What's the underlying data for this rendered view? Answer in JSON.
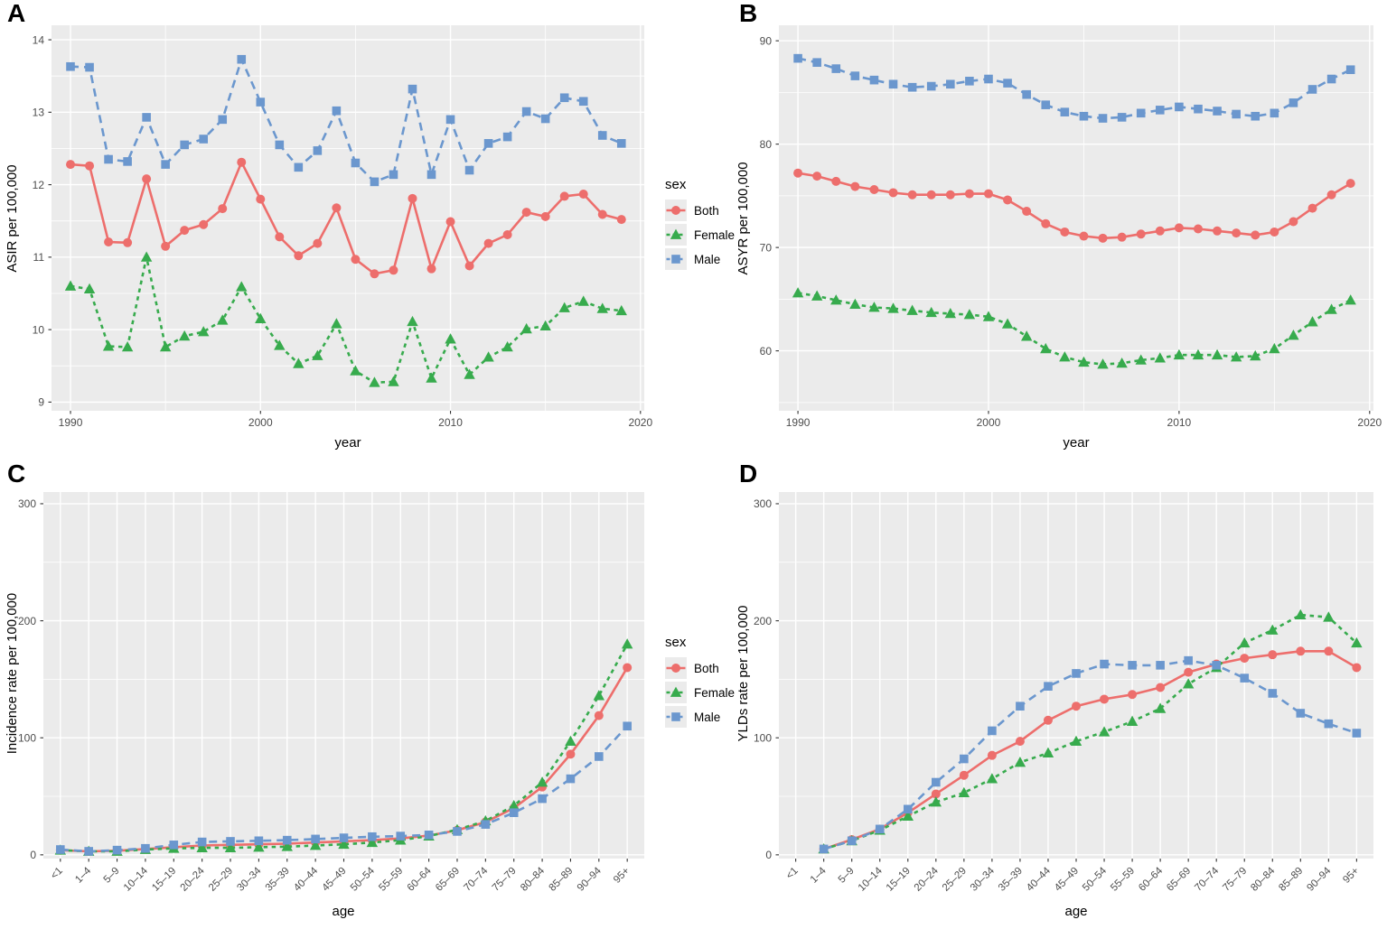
{
  "figure": {
    "panel_bg": "#EBEBEB",
    "grid_color": "#FFFFFF",
    "tick_color": "#333333",
    "tick_label_color": "#4d4d4d",
    "series_styles": {
      "Both": {
        "color": "#ED6E6C",
        "dash": "",
        "marker": "circle"
      },
      "Female": {
        "color": "#37AB4D",
        "dash": "4.5 4.5",
        "marker": "triangle"
      },
      "Male": {
        "color": "#6B97CE",
        "dash": "9 6",
        "marker": "square"
      }
    }
  },
  "legend": {
    "title": "sex",
    "items": [
      {
        "label": "Both",
        "series": "Both"
      },
      {
        "label": "Female",
        "series": "Female"
      },
      {
        "label": "Male",
        "series": "Male"
      }
    ]
  },
  "chart_data": [
    {
      "panel_label": "A",
      "type": "line",
      "title": "",
      "xlabel": "year",
      "ylabel": "ASIR per 100,000",
      "legend_position": "right-of-panel",
      "grid": true,
      "x": {
        "type": "linear",
        "x0": 1990,
        "domain": [
          1989.0,
          2020.2
        ],
        "major": [
          1990,
          2000,
          2010,
          2020
        ],
        "minor": [
          1995,
          2005,
          2015
        ]
      },
      "y": {
        "domain": [
          8.88,
          14.2
        ],
        "major": [
          9,
          10,
          11,
          12,
          13,
          14
        ],
        "minor": [
          9.5,
          10.5,
          11.5,
          12.5,
          13.5
        ]
      },
      "series": [
        {
          "name": "Both",
          "values": [
            12.28,
            12.26,
            11.21,
            11.2,
            12.08,
            11.15,
            11.37,
            11.45,
            11.67,
            12.31,
            11.8,
            11.28,
            11.02,
            11.19,
            11.68,
            10.97,
            10.77,
            10.82,
            11.81,
            10.84,
            11.49,
            10.88,
            11.19,
            11.31,
            11.62,
            11.56,
            11.84,
            11.87,
            11.59,
            11.52
          ]
        },
        {
          "name": "Female",
          "values": [
            10.6,
            10.56,
            9.77,
            9.76,
            11.0,
            9.76,
            9.91,
            9.97,
            10.13,
            10.59,
            10.15,
            9.78,
            9.53,
            9.64,
            10.08,
            9.43,
            9.27,
            9.28,
            10.11,
            9.33,
            9.87,
            9.38,
            9.62,
            9.76,
            10.01,
            10.05,
            10.3,
            10.39,
            10.29,
            10.26
          ]
        },
        {
          "name": "Male",
          "values": [
            13.63,
            13.62,
            12.35,
            12.32,
            12.93,
            12.28,
            12.55,
            12.63,
            12.9,
            13.73,
            13.14,
            12.55,
            12.24,
            12.47,
            13.02,
            12.3,
            12.04,
            12.14,
            13.32,
            12.14,
            12.9,
            12.2,
            12.57,
            12.66,
            13.01,
            12.91,
            13.2,
            13.15,
            12.68,
            12.57
          ]
        }
      ]
    },
    {
      "panel_label": "B",
      "type": "line",
      "title": "",
      "xlabel": "year",
      "ylabel": "ASYR per 100,000",
      "grid": true,
      "x": {
        "type": "linear",
        "x0": 1990,
        "domain": [
          1989.0,
          2020.2
        ],
        "major": [
          1990,
          2000,
          2010,
          2020
        ],
        "minor": [
          1995,
          2005,
          2015
        ]
      },
      "y": {
        "domain": [
          54.2,
          91.5
        ],
        "major": [
          60,
          70,
          80,
          90
        ],
        "minor": [
          55,
          65,
          75,
          85
        ]
      },
      "series": [
        {
          "name": "Both",
          "values": [
            77.2,
            76.9,
            76.4,
            75.9,
            75.6,
            75.3,
            75.1,
            75.1,
            75.1,
            75.2,
            75.2,
            74.6,
            73.5,
            72.3,
            71.5,
            71.1,
            70.9,
            71.0,
            71.3,
            71.6,
            71.9,
            71.8,
            71.6,
            71.4,
            71.2,
            71.5,
            72.5,
            73.8,
            75.1,
            76.2
          ]
        },
        {
          "name": "Female",
          "values": [
            65.6,
            65.3,
            64.9,
            64.5,
            64.2,
            64.1,
            63.9,
            63.7,
            63.6,
            63.5,
            63.3,
            62.6,
            61.4,
            60.2,
            59.4,
            58.9,
            58.7,
            58.8,
            59.1,
            59.3,
            59.6,
            59.6,
            59.6,
            59.4,
            59.5,
            60.2,
            61.5,
            62.8,
            64.0,
            64.9
          ]
        },
        {
          "name": "Male",
          "values": [
            88.3,
            87.9,
            87.3,
            86.6,
            86.2,
            85.8,
            85.5,
            85.6,
            85.8,
            86.1,
            86.3,
            85.9,
            84.8,
            83.8,
            83.1,
            82.7,
            82.5,
            82.6,
            83.0,
            83.3,
            83.6,
            83.4,
            83.2,
            82.9,
            82.7,
            83.0,
            84.0,
            85.3,
            86.3,
            87.2
          ]
        }
      ]
    },
    {
      "panel_label": "C",
      "type": "line",
      "title": "",
      "xlabel": "age",
      "ylabel": "Incidence rate per 100,000",
      "legend_position": "right-of-panel",
      "grid": true,
      "x": {
        "type": "band",
        "categories": [
          "<1",
          "1–4",
          "5–9",
          "10–14",
          "15–19",
          "20–24",
          "25–29",
          "30–34",
          "35–39",
          "40–44",
          "45–49",
          "50–54",
          "55–59",
          "60–64",
          "65–69",
          "70–74",
          "75–79",
          "80–84",
          "85–89",
          "90–94",
          "95+"
        ]
      },
      "y": {
        "domain": [
          -3.2,
          310
        ],
        "major": [
          0,
          100,
          200,
          300
        ],
        "minor": [
          50,
          150,
          250
        ]
      },
      "series": [
        {
          "name": "Both",
          "values": [
            4,
            3,
            3.5,
            5,
            6.5,
            8,
            8.5,
            9,
            9.5,
            10.5,
            11.5,
            12.5,
            14,
            16.5,
            21,
            28,
            40,
            58,
            86,
            119,
            160
          ]
        },
        {
          "name": "Female",
          "values": [
            4,
            3,
            3,
            4.5,
            5.5,
            6,
            6,
            6.5,
            7,
            8,
            9,
            10.5,
            12.5,
            16,
            21.5,
            29,
            42,
            62,
            97,
            136,
            180
          ]
        },
        {
          "name": "Male",
          "values": [
            4.5,
            3,
            4,
            5.5,
            8.5,
            11,
            11.5,
            12,
            12.5,
            13.5,
            14.5,
            15.5,
            16,
            17,
            20,
            26,
            36,
            48,
            65,
            84,
            110
          ]
        }
      ]
    },
    {
      "panel_label": "D",
      "type": "line",
      "title": "",
      "xlabel": "age",
      "ylabel": "YLDs rate per 100,000",
      "grid": true,
      "x": {
        "type": "band",
        "categories": [
          "<1",
          "1–4",
          "5–9",
          "10–14",
          "15–19",
          "20–24",
          "25–29",
          "30–34",
          "35–39",
          "40–44",
          "45–49",
          "50–54",
          "55–59",
          "60–64",
          "65–69",
          "70–74",
          "75–79",
          "80–84",
          "85–89",
          "90–94",
          "95+"
        ]
      },
      "y": {
        "domain": [
          -3.2,
          310
        ],
        "major": [
          0,
          100,
          200,
          300
        ],
        "minor": [
          50,
          150,
          250
        ]
      },
      "series": [
        {
          "name": "Both",
          "values": [
            null,
            5,
            13,
            22,
            36,
            52,
            68,
            85,
            97,
            115,
            127,
            133,
            137,
            143,
            156,
            163,
            168,
            171,
            174,
            174,
            160
          ]
        },
        {
          "name": "Female",
          "values": [
            null,
            5,
            12,
            21,
            33,
            45,
            53,
            65,
            79,
            87,
            97,
            105,
            114,
            125,
            146,
            160,
            181,
            192,
            205,
            203,
            181
          ]
        },
        {
          "name": "Male",
          "values": [
            null,
            5,
            12,
            22,
            39,
            62,
            82,
            106,
            127,
            144,
            155,
            163,
            162,
            162,
            166,
            162,
            151,
            138,
            121,
            112,
            104
          ]
        }
      ]
    }
  ]
}
